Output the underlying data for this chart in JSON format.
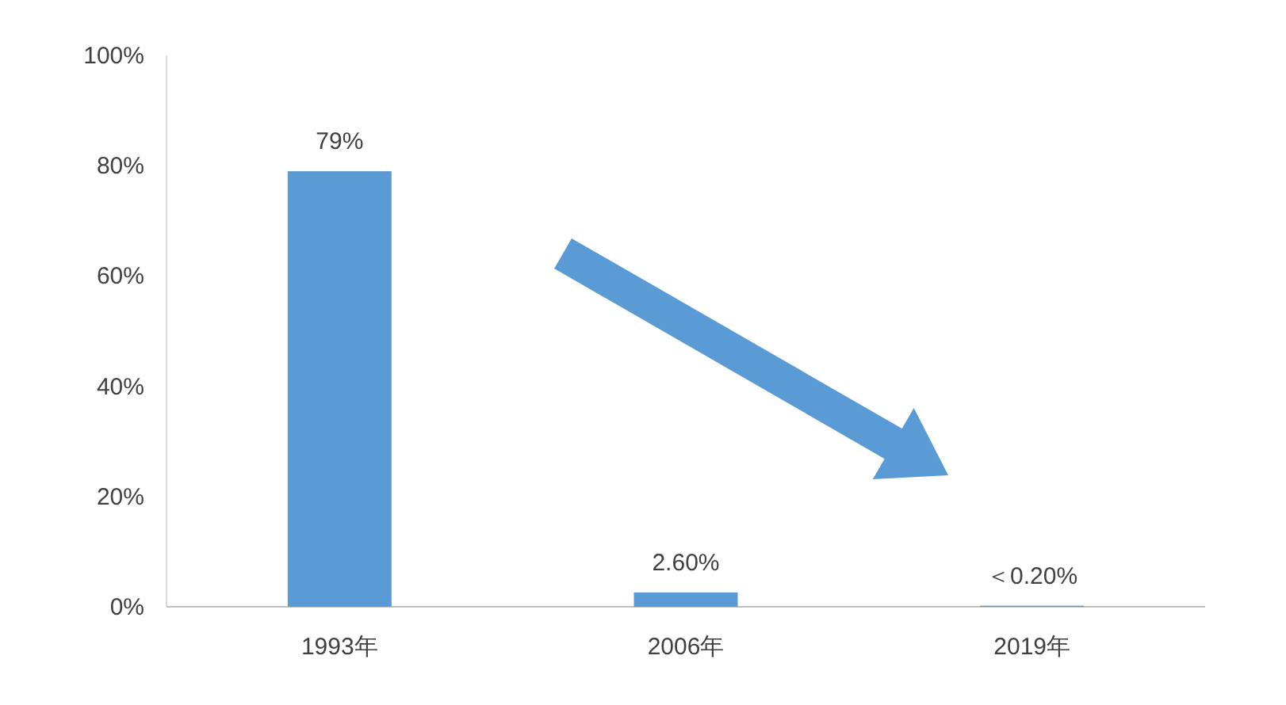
{
  "chart_data": {
    "type": "bar",
    "categories": [
      "1993年",
      "2006年",
      "2019年"
    ],
    "values": [
      79,
      2.6,
      0.2
    ],
    "value_labels": [
      "79%",
      "2.60%",
      "＜0.20%"
    ],
    "color": "#5b9bd5",
    "ylim": [
      0,
      100
    ],
    "yticks": [
      {
        "value": 0,
        "label": "0%"
      },
      {
        "value": 20,
        "label": "20%"
      },
      {
        "value": 40,
        "label": "40%"
      },
      {
        "value": 60,
        "label": "60%"
      },
      {
        "value": 80,
        "label": "80%"
      },
      {
        "value": 100,
        "label": "100%"
      }
    ],
    "grid": false
  }
}
